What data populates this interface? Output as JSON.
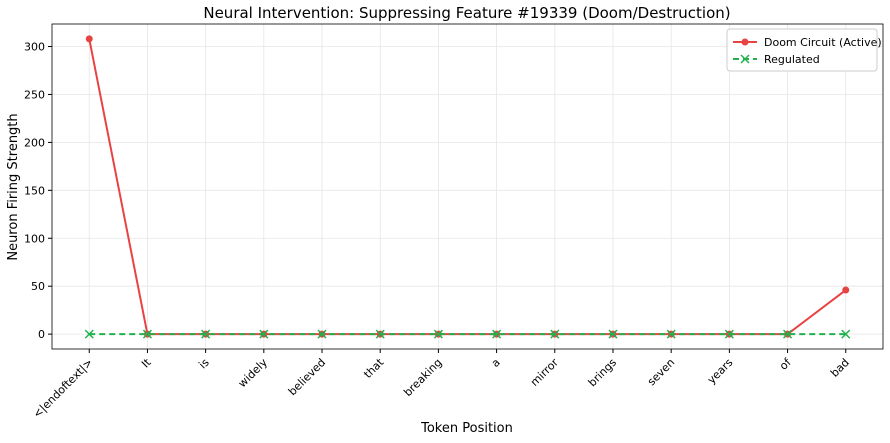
{
  "chart_data": {
    "type": "line",
    "title": "Neural Intervention: Suppressing Feature #19339 (Doom/Destruction)",
    "x_label": "Token Position",
    "y_label": "Neuron Firing Strength",
    "categories": [
      "<|endoftext|>",
      "It",
      "is",
      "widely",
      "believed",
      "that",
      "breaking",
      "a",
      "mirror",
      "brings",
      "seven",
      "years",
      "of",
      "bad"
    ],
    "series": [
      {
        "name": "Doom Circuit (Active)",
        "color": "#e84343",
        "marker": "circle",
        "linestyle": "solid",
        "values": [
          308,
          0,
          0,
          0,
          0,
          0,
          0,
          0,
          0,
          0,
          0,
          0,
          0,
          46
        ]
      },
      {
        "name": "Regulated",
        "color": "#22b14c",
        "marker": "x",
        "linestyle": "dashed",
        "values": [
          0,
          0,
          0,
          0,
          0,
          0,
          0,
          0,
          0,
          0,
          0,
          0,
          0,
          0
        ]
      }
    ],
    "ylim": [
      -15.5,
      323.5
    ],
    "yticks": [
      0,
      50,
      100,
      150,
      200,
      250,
      300
    ],
    "grid": true,
    "legend": "upper-right"
  }
}
